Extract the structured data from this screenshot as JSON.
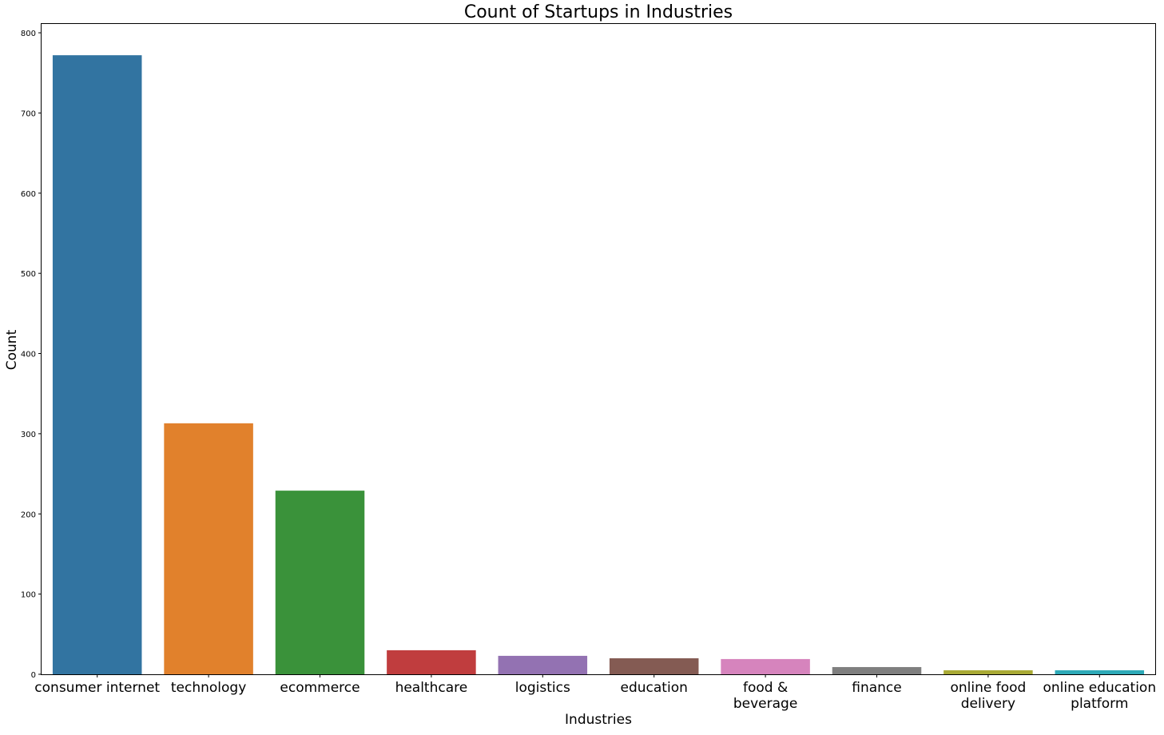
{
  "chart_data": {
    "type": "bar",
    "title": "Count of Startups in Industries",
    "xlabel": "Industries",
    "ylabel": "Count",
    "categories": [
      [
        "consumer internet"
      ],
      [
        "technology"
      ],
      [
        "ecommerce"
      ],
      [
        "healthcare"
      ],
      [
        "logistics"
      ],
      [
        "education"
      ],
      [
        "food &",
        "beverage"
      ],
      [
        "finance"
      ],
      [
        "online food",
        "delivery"
      ],
      [
        "online education",
        "platform"
      ]
    ],
    "values": [
      772,
      313,
      229,
      30,
      23,
      20,
      19,
      9,
      5,
      5
    ],
    "colors": [
      "#3274a1",
      "#e1812c",
      "#3a923a",
      "#c03d3e",
      "#9372b2",
      "#845b53",
      "#d684bd",
      "#7f7f7f",
      "#a9aa35",
      "#2eaab8"
    ],
    "ylim": [
      0,
      811
    ],
    "yticks": [
      0,
      100,
      200,
      300,
      400,
      500,
      600,
      700,
      800
    ],
    "grid": false,
    "legend": "none"
  }
}
